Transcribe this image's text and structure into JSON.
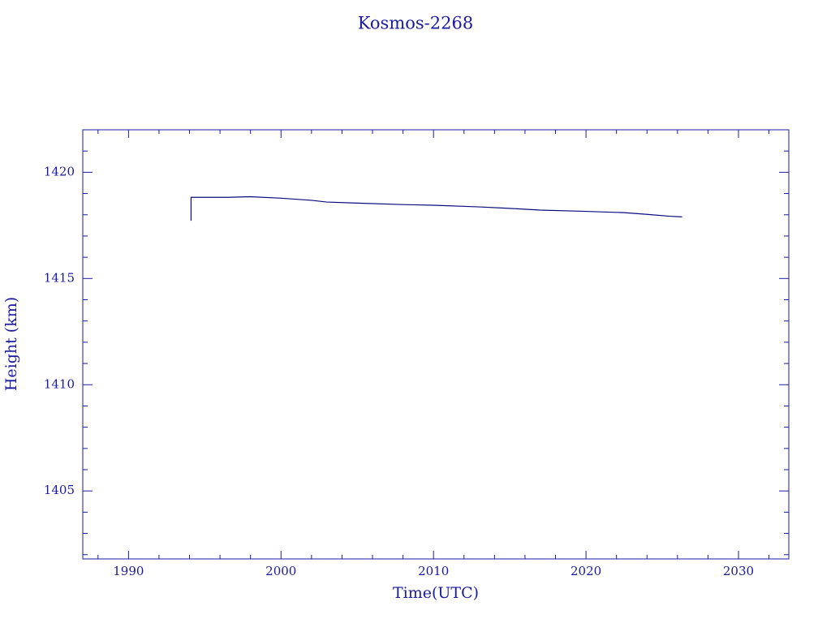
{
  "chart_data": {
    "type": "line",
    "title": "Kosmos-2268",
    "x_label": "Time(UTC)",
    "y_label": "Height (km)",
    "color": "#0a0a80",
    "axis_color": "#1a1aa0",
    "xlim": [
      1987.0,
      2033.3
    ],
    "ylim": [
      1401.8,
      1422.0
    ],
    "xticks": [
      1990,
      2000,
      2010,
      2020,
      2030
    ],
    "yticks": [
      1405,
      1410,
      1415,
      1420
    ],
    "xminorticks": [
      1988,
      1992,
      1994,
      1996,
      1998,
      2002,
      2004,
      2006,
      2008,
      2012,
      2014,
      2016,
      2018,
      2022,
      2024,
      2026,
      2028,
      2032
    ],
    "yminorticks": [
      1402,
      1403,
      1404,
      1406,
      1407,
      1408,
      1409,
      1411,
      1412,
      1413,
      1414,
      1416,
      1417,
      1418,
      1419,
      1421
    ],
    "grid": false,
    "x": [
      1994.1,
      1994.1,
      1996.5,
      1998.0,
      2000.0,
      2002.0,
      2003.0,
      2005.0,
      2008.0,
      2010.0,
      2013.0,
      2015.0,
      2017.0,
      2020.0,
      2022.5,
      2024.0,
      2025.5,
      2026.3
    ],
    "values": [
      1417.72,
      1418.82,
      1418.82,
      1418.85,
      1418.78,
      1418.68,
      1418.6,
      1418.55,
      1418.48,
      1418.45,
      1418.37,
      1418.3,
      1418.22,
      1418.16,
      1418.1,
      1418.02,
      1417.93,
      1417.9
    ]
  }
}
